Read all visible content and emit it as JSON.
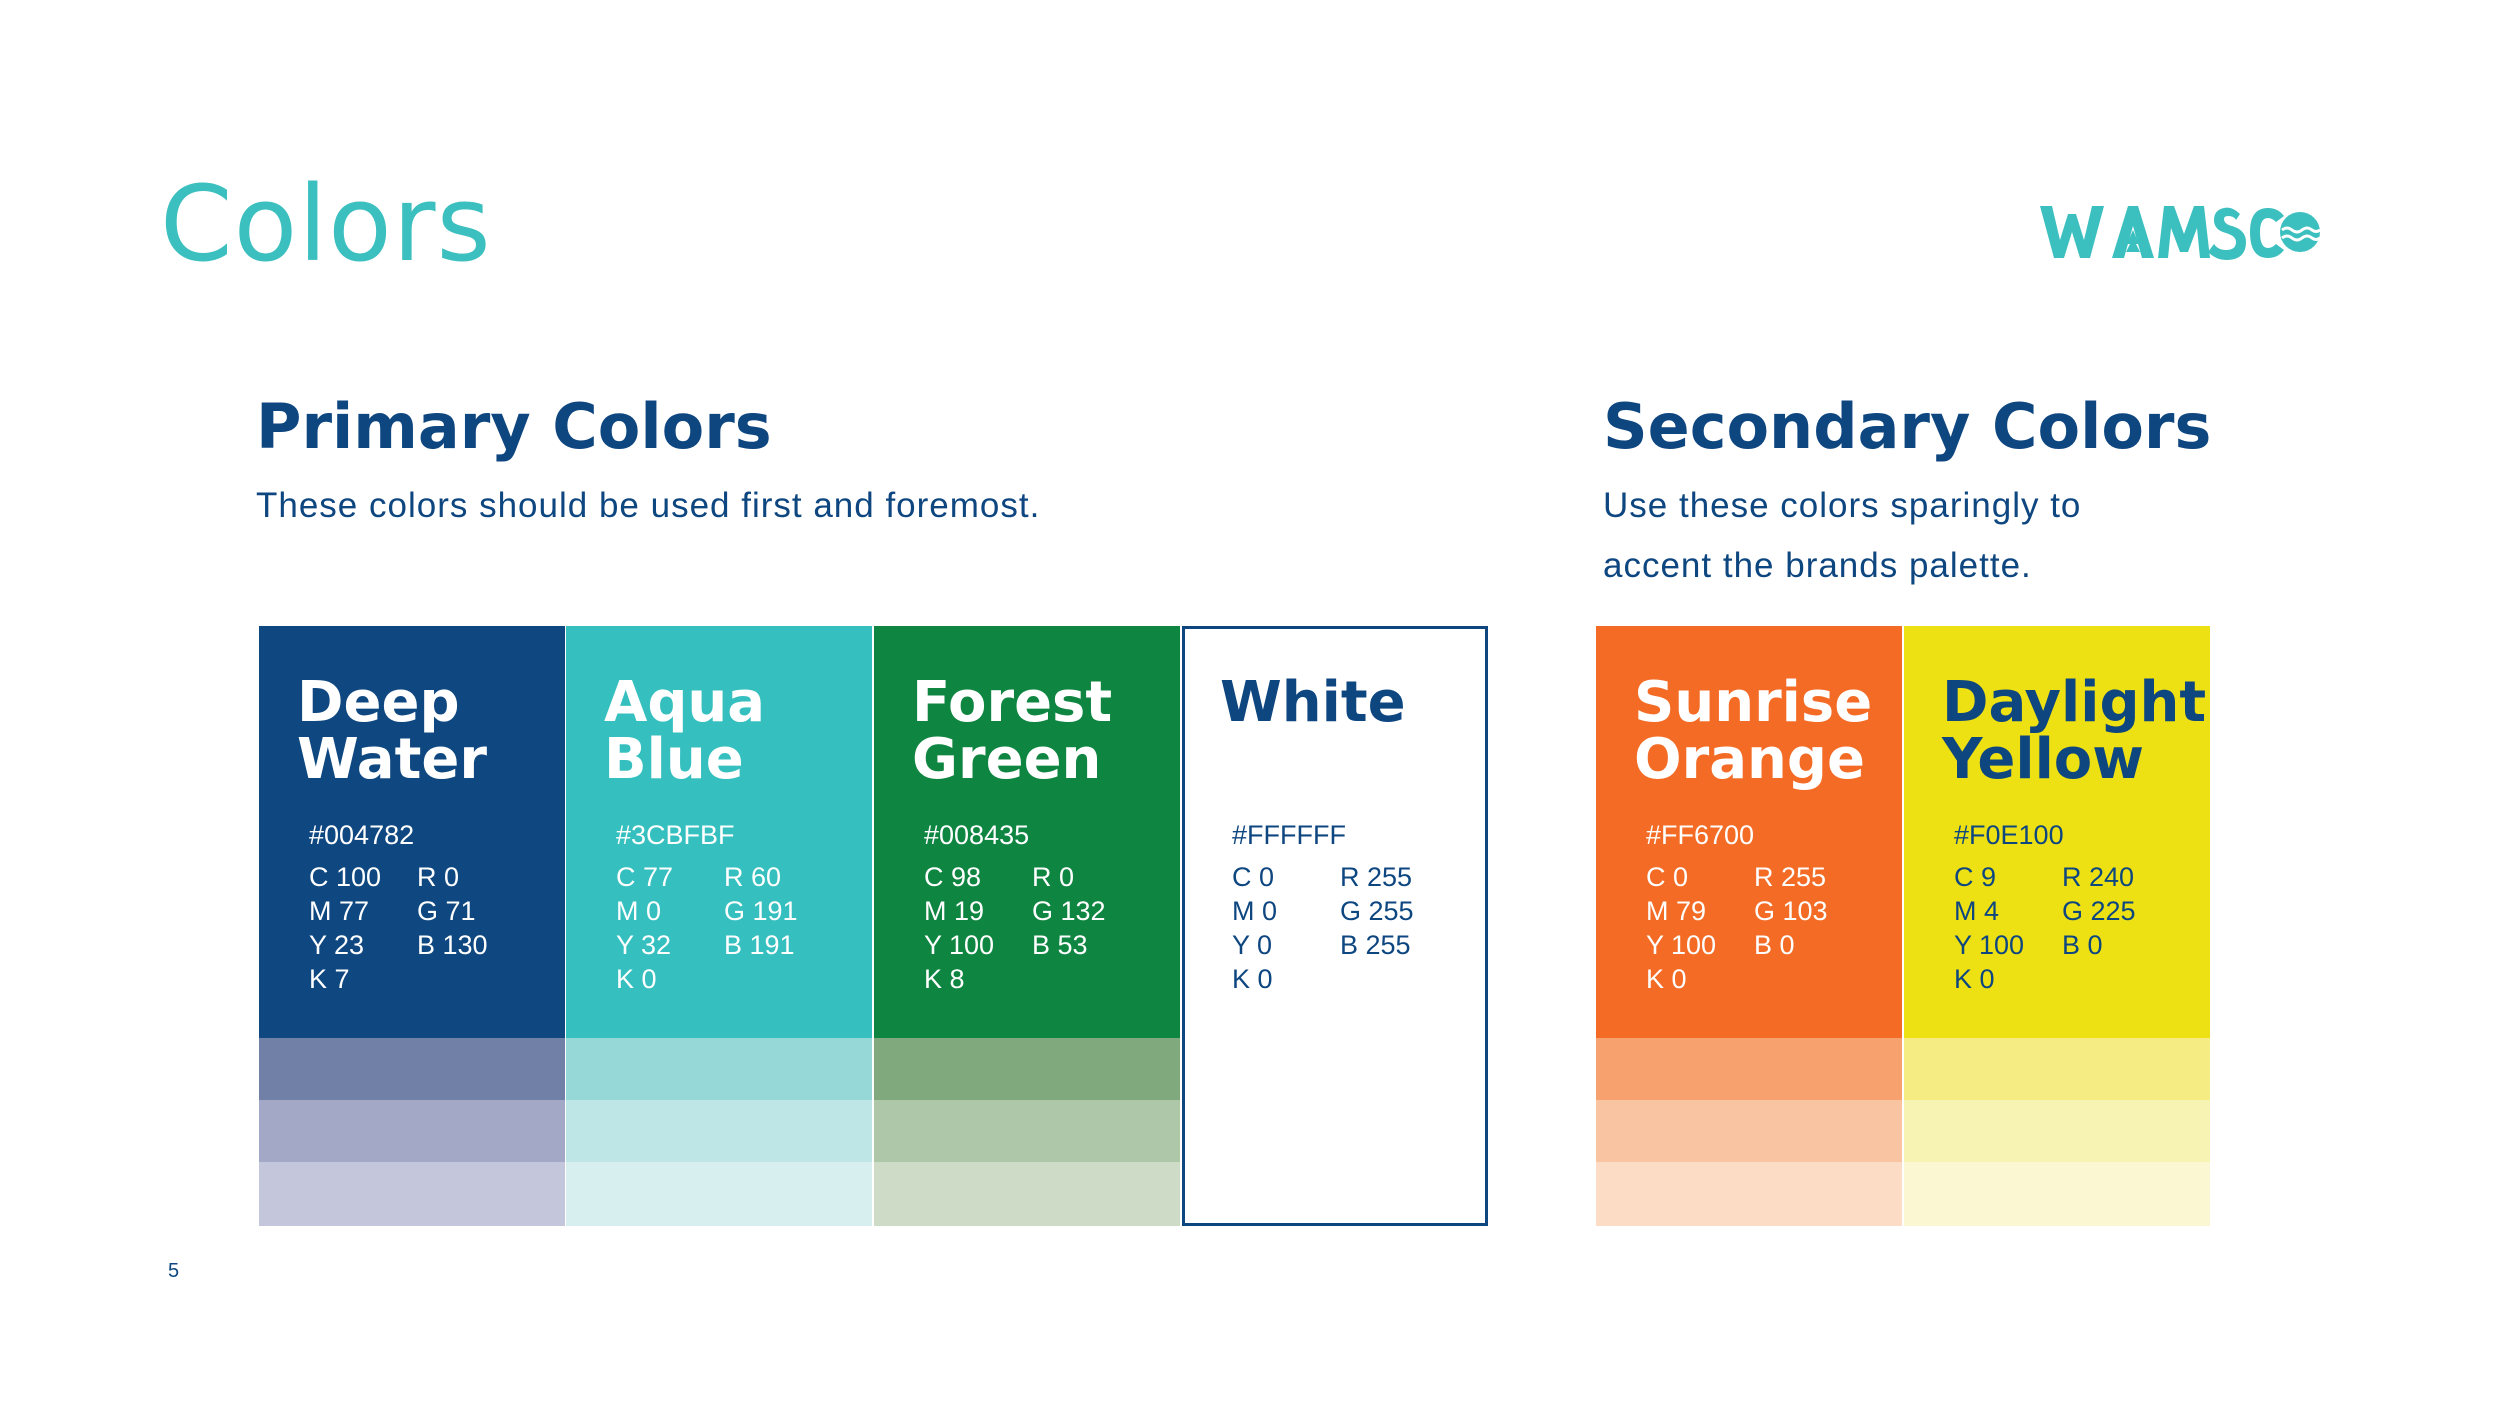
{
  "page": {
    "title": "Colors",
    "page_number": "5"
  },
  "logo": {
    "text": "WAMSCO",
    "icon": "wamsco-logo-icon"
  },
  "primary": {
    "title": "Primary Colors",
    "description": "These colors should be used first and foremost.",
    "swatches": [
      {
        "name": "Deep\nWater",
        "hex": "#004782",
        "cmyk": [
          "C 100",
          "M 77",
          "Y 23",
          "K 7"
        ],
        "rgb": [
          "R 0",
          "G 71",
          "B 130"
        ],
        "color": "#0f4880",
        "text_color": "#ffffff",
        "tints": [
          "#7080a6",
          "#a3a8c6",
          "#c4c7dc"
        ]
      },
      {
        "name": "Aqua\nBlue",
        "hex": "#3CBFBF",
        "cmyk": [
          "C 77",
          "M 0",
          "Y 32",
          "K 0"
        ],
        "rgb": [
          "R 60",
          "G 191",
          "B 191"
        ],
        "color": "#35bfbf",
        "text_color": "#ffffff",
        "tints": [
          "#96d7d8",
          "#bfe6e6",
          "#d8efef"
        ]
      },
      {
        "name": "Forest\nGreen",
        "hex": "#008435",
        "cmyk": [
          "C 98",
          "M 19",
          "Y 100",
          "K 8"
        ],
        "rgb": [
          "R 0",
          "G 132",
          "B 53"
        ],
        "color": "#0e8540",
        "text_color": "#ffffff",
        "tints": [
          "#80a97e",
          "#adc7a8",
          "#cddbc7"
        ]
      },
      {
        "name": "White",
        "hex": "#FFFFFF",
        "cmyk": [
          "C 0",
          "M 0",
          "Y 0",
          "K 0"
        ],
        "rgb": [
          "R 255",
          "G 255",
          "B 255"
        ],
        "color": "#ffffff",
        "text_color": "#0e4680",
        "tints": []
      }
    ]
  },
  "secondary": {
    "title": "Secondary Colors",
    "description": "Use these colors sparingly to accent the brands palette.",
    "swatches": [
      {
        "name": "Sunrise\nOrange",
        "hex": "#FF6700",
        "cmyk": [
          "C 0",
          "M 79",
          "Y 100",
          "K 0"
        ],
        "rgb": [
          "R 255",
          "G 103",
          "B 0"
        ],
        "color": "#f36b24",
        "text_color": "#ffffff",
        "tints": [
          "#f7a16e",
          "#f9c4a1",
          "#fcdcc4"
        ]
      },
      {
        "name": "Daylight\nYellow",
        "hex": "#F0E100",
        "cmyk": [
          "C 9",
          "M 4",
          "Y 100",
          "K 0"
        ],
        "rgb": [
          "R 240",
          "G 225",
          "B 0"
        ],
        "color": "#ede114",
        "text_color": "#0e4680",
        "tints": [
          "#f5ec83",
          "#f7f3b2",
          "#faf7d2"
        ]
      }
    ]
  }
}
